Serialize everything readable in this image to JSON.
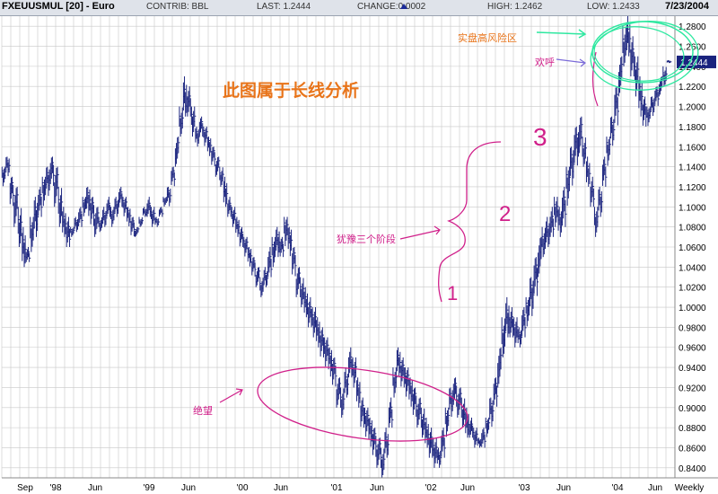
{
  "header": {
    "title": "FXEUUSMUL [20] - Euro",
    "contrib": "CONTRIB: BBL",
    "last": "LAST: 1.2444",
    "change_label": "CHANGE:",
    "change_value": "0.0002",
    "high": "HIGH: 1.2462",
    "low": "LOW: 1.2433",
    "date": "7/23/2004"
  },
  "annotations": {
    "main_note": "此图属于长线分析",
    "risk_zone": "实盘高风险区",
    "cheer": "欢呼",
    "hesitation": "犹豫三个阶段",
    "despair": "绝望",
    "stage1": "1",
    "stage2": "2",
    "stage3": "3"
  },
  "colors": {
    "bars": "#1a237e",
    "grid": "#c8c8c8",
    "magenta": "#d0208a",
    "orange": "#e8741a",
    "green": "#2ee8a0",
    "price_tag": "#1a237e"
  },
  "chart_data": {
    "type": "ohlc",
    "title": "FXEUUSMUL [20] - Euro",
    "period": "Weekly",
    "ylim": [
      0.83,
      1.29
    ],
    "y_ticks": [
      "1.2800",
      "1.2600",
      "1.2400",
      "1.2200",
      "1.2000",
      "1.1800",
      "1.1600",
      "1.1400",
      "1.1200",
      "1.1000",
      "1.0800",
      "1.0600",
      "1.0400",
      "1.0200",
      "1.0000",
      "0.9800",
      "0.9600",
      "0.9400",
      "0.9200",
      "0.9000",
      "0.8800",
      "0.8600",
      "0.8400"
    ],
    "x_ticks": [
      "Sep",
      "'98",
      "Jun",
      "'99",
      "Jun",
      "'00",
      "Jun",
      "'01",
      "Jun",
      "'02",
      "Jun",
      "'03",
      "Jun",
      "'04",
      "Jun",
      "Weekly"
    ],
    "last_price": "1.2444",
    "series": [
      {
        "points": [
          [
            1.14,
            1.12
          ],
          [
            1.15,
            1.13
          ],
          [
            1.13,
            1.1
          ],
          [
            1.12,
            1.08
          ],
          [
            1.1,
            1.06
          ],
          [
            1.08,
            1.04
          ],
          [
            1.06,
            1.045
          ],
          [
            1.09,
            1.055
          ],
          [
            1.11,
            1.07
          ],
          [
            1.12,
            1.09
          ],
          [
            1.13,
            1.1
          ],
          [
            1.14,
            1.11
          ],
          [
            1.15,
            1.12
          ],
          [
            1.14,
            1.1
          ],
          [
            1.12,
            1.08
          ],
          [
            1.1,
            1.07
          ],
          [
            1.09,
            1.06
          ],
          [
            1.08,
            1.07
          ],
          [
            1.09,
            1.075
          ],
          [
            1.1,
            1.08
          ],
          [
            1.11,
            1.09
          ],
          [
            1.12,
            1.09
          ],
          [
            1.11,
            1.08
          ],
          [
            1.1,
            1.07
          ],
          [
            1.09,
            1.075
          ],
          [
            1.1,
            1.08
          ],
          [
            1.11,
            1.09
          ],
          [
            1.1,
            1.08
          ],
          [
            1.11,
            1.09
          ],
          [
            1.12,
            1.1
          ],
          [
            1.11,
            1.09
          ],
          [
            1.1,
            1.08
          ],
          [
            1.09,
            1.07
          ],
          [
            1.08,
            1.07
          ],
          [
            1.09,
            1.08
          ],
          [
            1.1,
            1.09
          ],
          [
            1.11,
            1.09
          ],
          [
            1.1,
            1.08
          ],
          [
            1.09,
            1.08
          ],
          [
            1.1,
            1.09
          ],
          [
            1.11,
            1.1
          ],
          [
            1.12,
            1.1
          ]
        ]
      },
      {
        "points": [
          [
            1.14,
            1.12
          ],
          [
            1.17,
            1.14
          ],
          [
            1.2,
            1.17
          ],
          [
            1.23,
            1.19
          ],
          [
            1.22,
            1.19
          ],
          [
            1.2,
            1.17
          ],
          [
            1.18,
            1.16
          ],
          [
            1.19,
            1.17
          ],
          [
            1.18,
            1.16
          ],
          [
            1.17,
            1.15
          ],
          [
            1.16,
            1.14
          ],
          [
            1.15,
            1.13
          ],
          [
            1.14,
            1.12
          ],
          [
            1.13,
            1.1
          ],
          [
            1.11,
            1.09
          ],
          [
            1.1,
            1.08
          ],
          [
            1.09,
            1.07
          ],
          [
            1.08,
            1.06
          ],
          [
            1.07,
            1.05
          ],
          [
            1.06,
            1.04
          ],
          [
            1.05,
            1.03
          ],
          [
            1.04,
            1.02
          ],
          [
            1.03,
            1.01
          ],
          [
            1.04,
            1.02
          ],
          [
            1.06,
            1.03
          ],
          [
            1.07,
            1.04
          ],
          [
            1.08,
            1.05
          ],
          [
            1.07,
            1.05
          ],
          [
            1.09,
            1.06
          ],
          [
            1.08,
            1.05
          ],
          [
            1.06,
            1.03
          ],
          [
            1.04,
            1.01
          ],
          [
            1.03,
            1.0
          ],
          [
            1.02,
            0.99
          ],
          [
            1.01,
            0.98
          ],
          [
            1.0,
            0.97
          ],
          [
            0.99,
            0.96
          ],
          [
            0.98,
            0.95
          ],
          [
            0.97,
            0.94
          ],
          [
            0.96,
            0.93
          ]
        ]
      },
      {
        "points": [
          [
            0.95,
            0.92
          ],
          [
            0.93,
            0.9
          ],
          [
            0.92,
            0.89
          ],
          [
            0.94,
            0.91
          ],
          [
            0.96,
            0.93
          ],
          [
            0.95,
            0.92
          ],
          [
            0.93,
            0.9
          ],
          [
            0.91,
            0.88
          ],
          [
            0.9,
            0.87
          ],
          [
            0.89,
            0.86
          ],
          [
            0.88,
            0.85
          ],
          [
            0.87,
            0.84
          ],
          [
            0.86,
            0.83
          ],
          [
            0.88,
            0.85
          ],
          [
            0.91,
            0.88
          ],
          [
            0.94,
            0.91
          ],
          [
            0.96,
            0.93
          ],
          [
            0.95,
            0.92
          ],
          [
            0.94,
            0.91
          ],
          [
            0.93,
            0.9
          ],
          [
            0.92,
            0.89
          ],
          [
            0.91,
            0.88
          ],
          [
            0.9,
            0.87
          ],
          [
            0.89,
            0.86
          ],
          [
            0.88,
            0.85
          ],
          [
            0.87,
            0.84
          ],
          [
            0.86,
            0.84
          ],
          [
            0.88,
            0.85
          ],
          [
            0.9,
            0.87
          ],
          [
            0.92,
            0.89
          ],
          [
            0.93,
            0.9
          ],
          [
            0.92,
            0.89
          ],
          [
            0.91,
            0.88
          ],
          [
            0.9,
            0.87
          ],
          [
            0.89,
            0.87
          ],
          [
            0.88,
            0.86
          ],
          [
            0.87,
            0.86
          ],
          [
            0.88,
            0.86
          ],
          [
            0.89,
            0.87
          ],
          [
            0.91,
            0.88
          ]
        ]
      },
      {
        "points": [
          [
            0.93,
            0.9
          ],
          [
            0.96,
            0.92
          ],
          [
            0.99,
            0.95
          ],
          [
            1.01,
            0.97
          ],
          [
            1.0,
            0.97
          ],
          [
            0.99,
            0.96
          ],
          [
            0.98,
            0.96
          ],
          [
            1.0,
            0.97
          ],
          [
            1.01,
            0.98
          ],
          [
            1.03,
            0.99
          ],
          [
            1.05,
            1.01
          ],
          [
            1.07,
            1.03
          ],
          [
            1.08,
            1.05
          ],
          [
            1.09,
            1.06
          ],
          [
            1.1,
            1.07
          ],
          [
            1.11,
            1.08
          ],
          [
            1.1,
            1.07
          ],
          [
            1.12,
            1.08
          ],
          [
            1.14,
            1.1
          ],
          [
            1.16,
            1.12
          ],
          [
            1.18,
            1.14
          ],
          [
            1.19,
            1.15
          ],
          [
            1.17,
            1.14
          ],
          [
            1.15,
            1.12
          ],
          [
            1.13,
            1.1
          ],
          [
            1.1,
            1.07
          ],
          [
            1.12,
            1.09
          ],
          [
            1.15,
            1.12
          ],
          [
            1.17,
            1.14
          ],
          [
            1.19,
            1.16
          ],
          [
            1.22,
            1.18
          ],
          [
            1.25,
            1.21
          ],
          [
            1.28,
            1.24
          ],
          [
            1.29,
            1.25
          ],
          [
            1.27,
            1.23
          ],
          [
            1.25,
            1.21
          ],
          [
            1.23,
            1.19
          ],
          [
            1.21,
            1.18
          ],
          [
            1.2,
            1.18
          ],
          [
            1.21,
            1.19
          ],
          [
            1.22,
            1.2
          ],
          [
            1.23,
            1.21
          ],
          [
            1.24,
            1.22
          ],
          [
            1.2462,
            1.2433
          ]
        ]
      }
    ]
  }
}
